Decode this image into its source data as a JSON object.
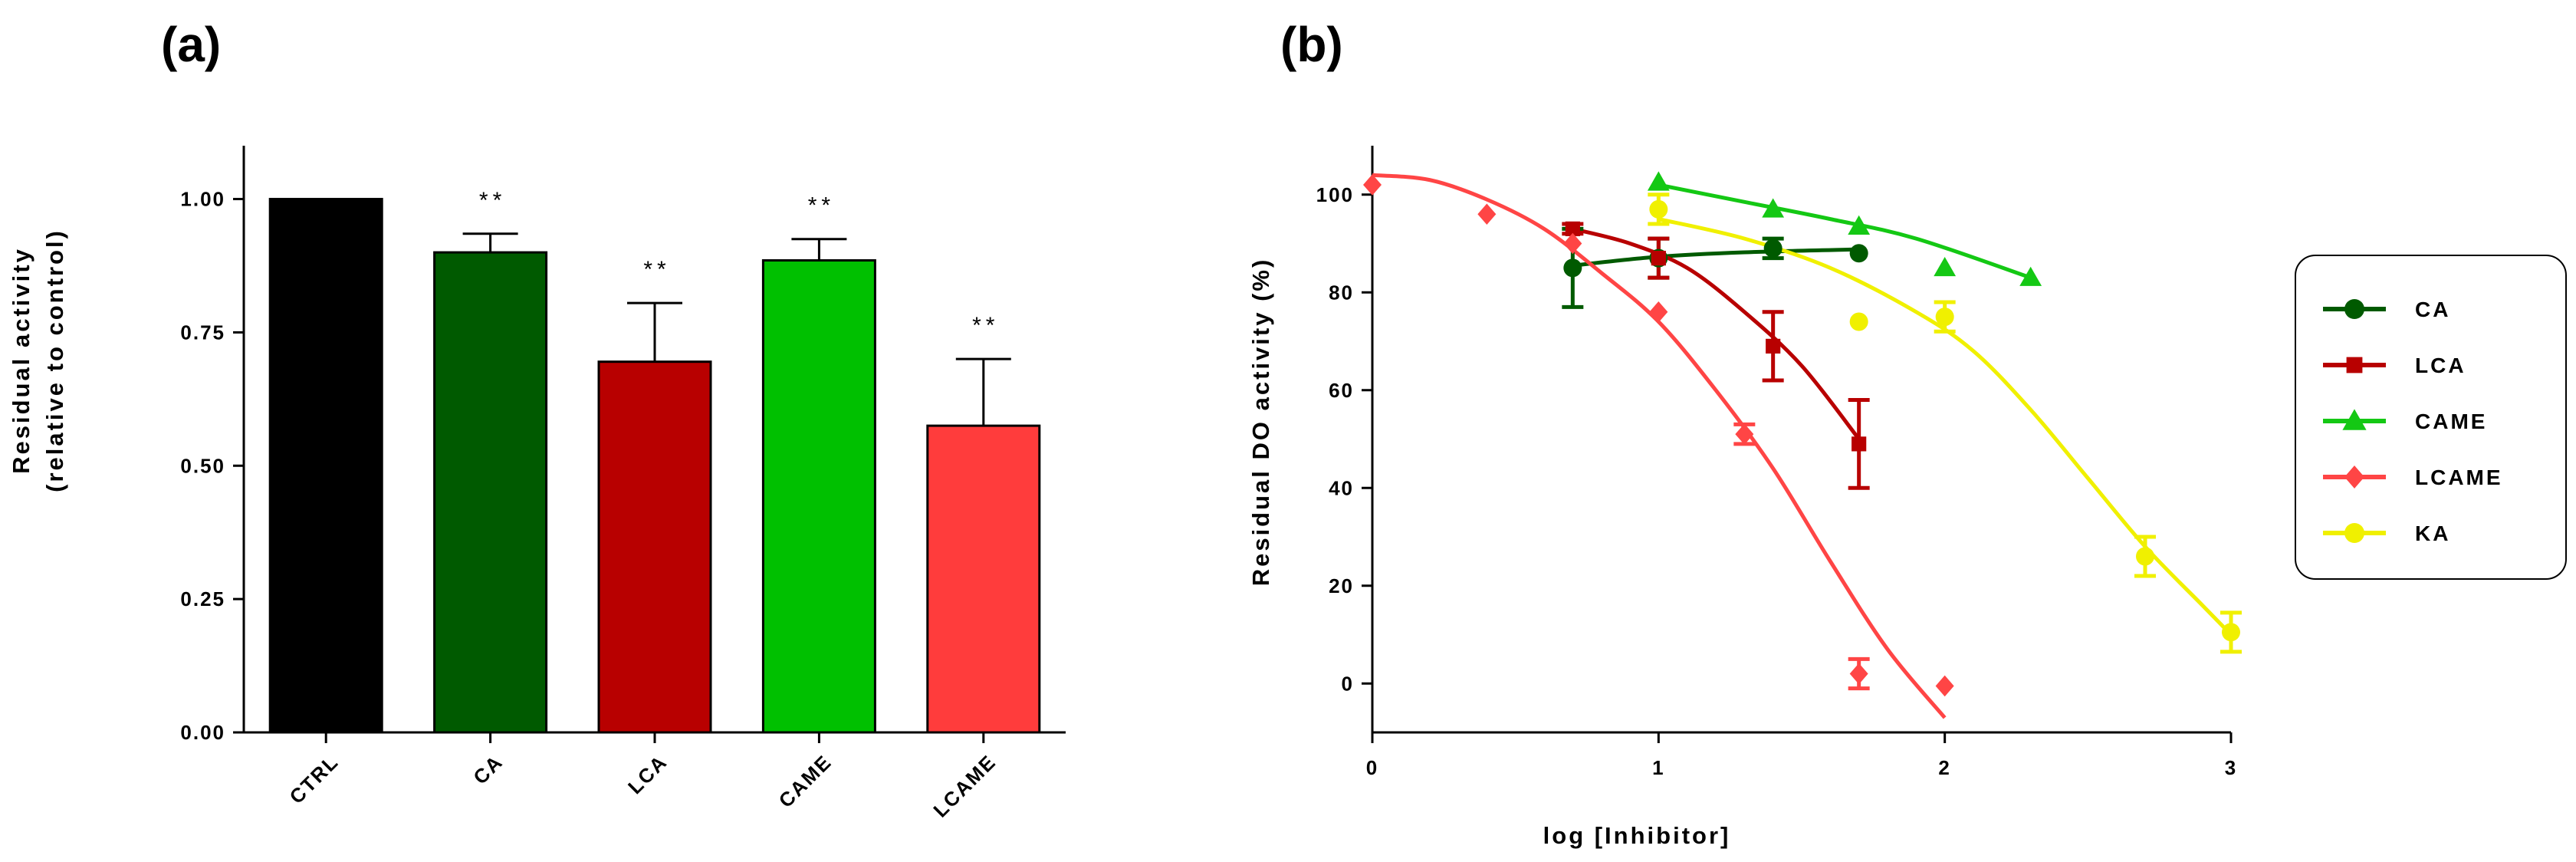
{
  "chart_data": [
    {
      "panel": "(a)",
      "type": "bar",
      "title": "",
      "xlabel": "",
      "ylabel_line1": "Residual activity",
      "ylabel_line2": "(relative to control)",
      "ylim": [
        0,
        1.1
      ],
      "yticks": [
        "0.00",
        "0.25",
        "0.50",
        "0.75",
        "1.00"
      ],
      "ytick_values": [
        0,
        0.25,
        0.5,
        0.75,
        1.0
      ],
      "categories": [
        "CTRL",
        "CA",
        "LCA",
        "CAME",
        "LCAME"
      ],
      "values": [
        1.0,
        0.9,
        0.695,
        0.885,
        0.575
      ],
      "errors": [
        0,
        0.035,
        0.11,
        0.04,
        0.125
      ],
      "colors": [
        "#000000",
        "#005a00",
        "#b80000",
        "#00c000",
        "#ff3c3c"
      ],
      "annotations": [
        "",
        "**",
        "**",
        "**",
        "**"
      ]
    },
    {
      "panel": "(b)",
      "type": "scatter",
      "title": "",
      "xlabel": "log [Inhibitor]",
      "ylabel": "Residual DO activity (%)",
      "xlim": [
        0,
        3
      ],
      "ylim": [
        -10,
        110
      ],
      "xticks": [
        "0",
        "1",
        "2",
        "3"
      ],
      "xtick_values": [
        0,
        1,
        2,
        3
      ],
      "yticks": [
        "0",
        "20",
        "40",
        "60",
        "80",
        "100"
      ],
      "ytick_values": [
        0,
        20,
        40,
        60,
        80,
        100
      ],
      "legend_position": "right",
      "series": [
        {
          "name": "CA",
          "color": "#005a00",
          "marker": "circle",
          "points": [
            {
              "x": 0.7,
              "y": 85,
              "err": 8
            },
            {
              "x": 1.0,
              "y": 87,
              "err": 4
            },
            {
              "x": 1.4,
              "y": 89,
              "err": 2
            },
            {
              "x": 1.7,
              "y": 88,
              "err": 0
            }
          ],
          "fit": [
            [
              0.7,
              85.5
            ],
            [
              1.0,
              87.3
            ],
            [
              1.3,
              88.2
            ],
            [
              1.7,
              88.8
            ]
          ]
        },
        {
          "name": "LCA",
          "color": "#b80000",
          "marker": "square",
          "points": [
            {
              "x": 0.7,
              "y": 93,
              "err": 1
            },
            {
              "x": 1.0,
              "y": 87,
              "err": 4
            },
            {
              "x": 1.4,
              "y": 69,
              "err": 7
            },
            {
              "x": 1.7,
              "y": 49,
              "err": 9
            }
          ],
          "fit": [
            [
              0.7,
              93
            ],
            [
              0.9,
              90
            ],
            [
              1.1,
              85
            ],
            [
              1.3,
              76
            ],
            [
              1.5,
              65
            ],
            [
              1.7,
              50
            ]
          ]
        },
        {
          "name": "CAME",
          "color": "#14c814",
          "marker": "triangle",
          "points": [
            {
              "x": 1.0,
              "y": 102.5,
              "err": 0
            },
            {
              "x": 1.4,
              "y": 97,
              "err": 0
            },
            {
              "x": 1.7,
              "y": 93.5,
              "err": 0
            },
            {
              "x": 2.0,
              "y": 85,
              "err": 0
            },
            {
              "x": 2.3,
              "y": 83,
              "err": 0
            }
          ],
          "fit": [
            [
              1.0,
              102
            ],
            [
              1.3,
              98.5
            ],
            [
              1.6,
              95
            ],
            [
              1.9,
              91
            ],
            [
              2.3,
              83
            ]
          ]
        },
        {
          "name": "LCAME",
          "color": "#ff4545",
          "marker": "diamond",
          "points": [
            {
              "x": 0.0,
              "y": 102,
              "err": 0
            },
            {
              "x": 0.4,
              "y": 96,
              "err": 0
            },
            {
              "x": 0.7,
              "y": 90,
              "err": 0
            },
            {
              "x": 1.0,
              "y": 76,
              "err": 0
            },
            {
              "x": 1.3,
              "y": 51,
              "err": 2
            },
            {
              "x": 1.7,
              "y": 2,
              "err": 3
            },
            {
              "x": 2.0,
              "y": -0.5,
              "err": 0
            }
          ],
          "fit": [
            [
              0.0,
              104
            ],
            [
              0.2,
              103
            ],
            [
              0.4,
              99
            ],
            [
              0.6,
              93
            ],
            [
              0.8,
              84
            ],
            [
              1.0,
              74
            ],
            [
              1.2,
              60
            ],
            [
              1.4,
              44
            ],
            [
              1.6,
              25
            ],
            [
              1.8,
              7
            ],
            [
              2.0,
              -7
            ]
          ]
        },
        {
          "name": "KA",
          "color": "#f0f000",
          "marker": "circle",
          "points": [
            {
              "x": 1.0,
              "y": 97,
              "err": 3
            },
            {
              "x": 1.7,
              "y": 74,
              "err": 0
            },
            {
              "x": 2.0,
              "y": 75,
              "err": 3
            },
            {
              "x": 2.7,
              "y": 26,
              "err": 4
            },
            {
              "x": 3.0,
              "y": 10.5,
              "err": 4
            }
          ],
          "fit": [
            [
              1.0,
              95
            ],
            [
              1.3,
              91
            ],
            [
              1.6,
              85
            ],
            [
              1.9,
              76
            ],
            [
              2.1,
              68
            ],
            [
              2.3,
              56
            ],
            [
              2.5,
              42
            ],
            [
              2.7,
              28
            ],
            [
              2.9,
              16
            ],
            [
              3.0,
              10
            ]
          ]
        }
      ]
    }
  ]
}
